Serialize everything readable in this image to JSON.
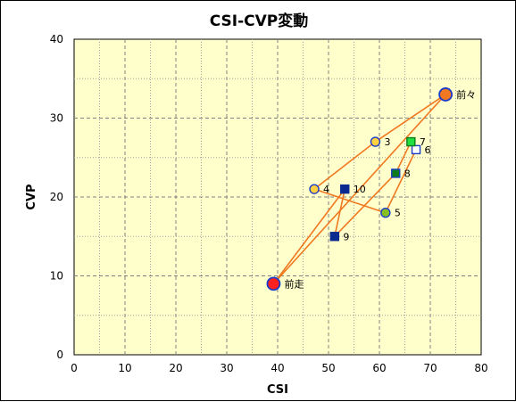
{
  "chart_data": {
    "type": "scatter",
    "title": "CSI-CVP変動",
    "xlabel": "CSI",
    "ylabel": "CVP",
    "xlim": [
      0,
      80
    ],
    "ylim": [
      0,
      40
    ],
    "xticks": [
      0,
      10,
      20,
      30,
      40,
      50,
      60,
      70,
      80
    ],
    "yticks": [
      0,
      10,
      20,
      30,
      40
    ],
    "grid": true,
    "grid_style": "dashed-major-dotted-minor",
    "plot_background": "#ffffcc",
    "line_color": "#f07820",
    "points": [
      {
        "label": "前々",
        "x": 73.0,
        "y": 33.0,
        "marker": "circle",
        "size": "large",
        "fill": "#f07820",
        "stroke": "#1a3cc8"
      },
      {
        "label": "3",
        "x": 59.2,
        "y": 27.0,
        "marker": "circle",
        "size": "small",
        "fill": "#ffd040",
        "stroke": "#1a3cc8"
      },
      {
        "label": "4",
        "x": 47.2,
        "y": 21.0,
        "marker": "circle",
        "size": "small",
        "fill": "#ffd040",
        "stroke": "#1a3cc8"
      },
      {
        "label": "5",
        "x": 61.2,
        "y": 18.0,
        "marker": "circle",
        "size": "small",
        "fill": "#88c020",
        "stroke": "#1a3cc8"
      },
      {
        "label": "6",
        "x": 67.2,
        "y": 26.0,
        "marker": "square",
        "size": "small",
        "fill": "#ffffff",
        "stroke": "#1a3cc8"
      },
      {
        "label": "7",
        "x": 66.2,
        "y": 27.0,
        "marker": "square",
        "size": "small",
        "fill": "#20e040",
        "stroke": "#0a7a1a"
      },
      {
        "label": "8",
        "x": 63.2,
        "y": 23.0,
        "marker": "square",
        "size": "small",
        "fill": "#0a7a1a",
        "stroke": "#1a3cc8"
      },
      {
        "label": "9",
        "x": 51.2,
        "y": 15.0,
        "marker": "square",
        "size": "small",
        "fill": "#0a2a90",
        "stroke": "#0a2a90"
      },
      {
        "label": "10",
        "x": 53.2,
        "y": 21.0,
        "marker": "square",
        "size": "small",
        "fill": "#0a2a90",
        "stroke": "#0a2a90"
      },
      {
        "label": "前走",
        "x": 39.2,
        "y": 9.0,
        "marker": "circle",
        "size": "large",
        "fill": "#ff2020",
        "stroke": "#1a3cc8"
      }
    ],
    "path_order": [
      "前々",
      "3",
      "4",
      "5",
      "6",
      "7",
      "8",
      "9",
      "10",
      "前走",
      "前々"
    ]
  }
}
